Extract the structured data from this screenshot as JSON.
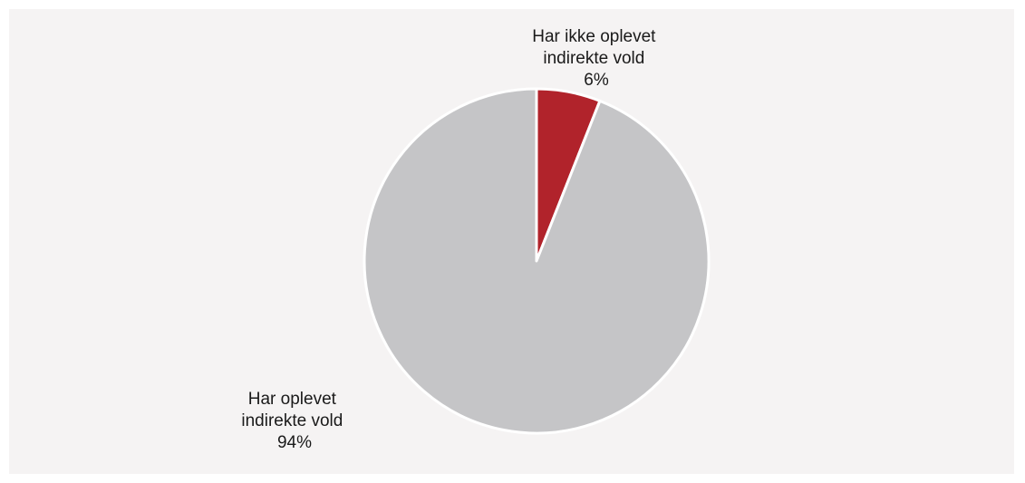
{
  "chart_data": {
    "type": "pie",
    "title": "",
    "series": [
      {
        "values": [
          6,
          94
        ]
      }
    ],
    "slices": [
      {
        "label_lines": [
          "Har ikke oplevet",
          "indirekte vold"
        ],
        "value": 6,
        "value_label": "6%",
        "color": "#b1232b"
      },
      {
        "label_lines": [
          "Har oplevet",
          "indirekte vold"
        ],
        "value": 94,
        "value_label": "94%",
        "color": "#c5c5c7"
      }
    ],
    "start_angle_deg": 0,
    "direction": "clockwise",
    "legend": "none",
    "separator_color": "#ffffff",
    "background_color": "#f5f3f3"
  }
}
